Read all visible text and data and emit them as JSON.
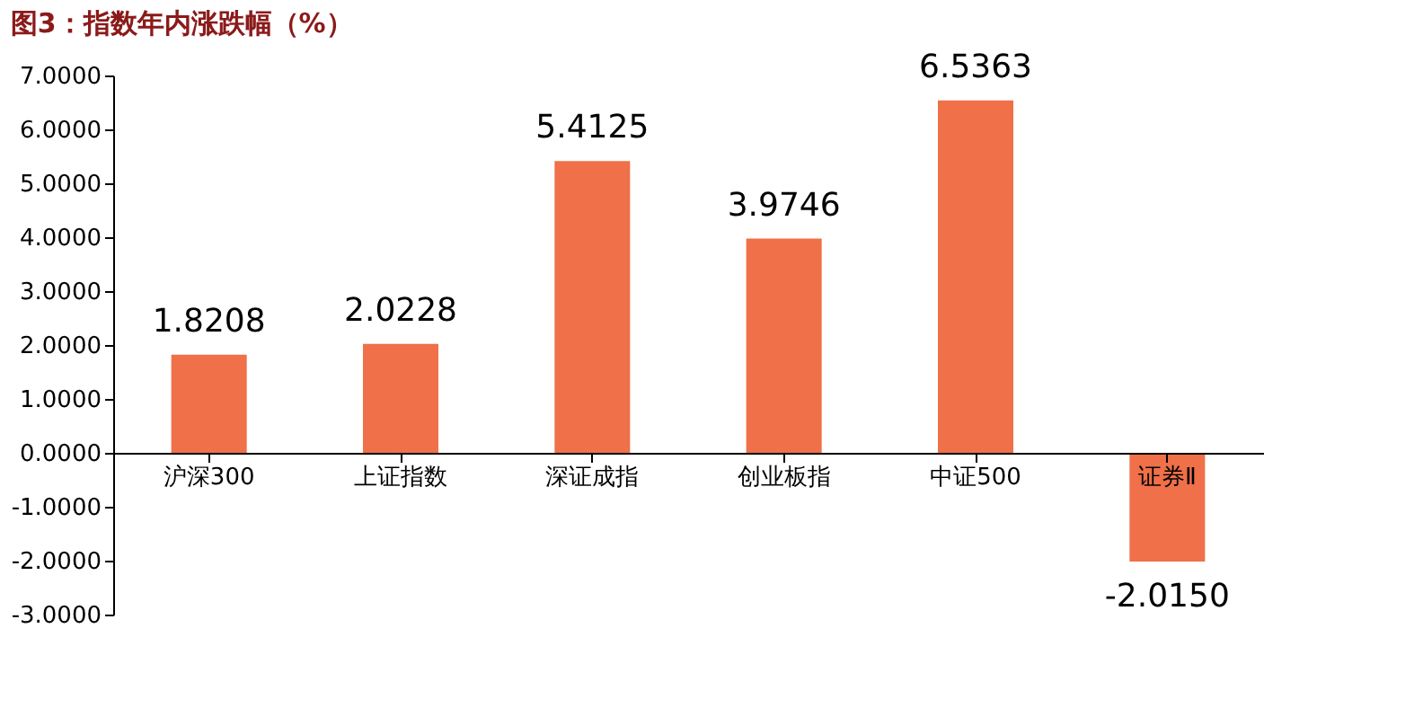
{
  "chart_data": {
    "type": "bar",
    "title": "图3：指数年内涨跌幅（%）",
    "categories": [
      "沪深300",
      "上证指数",
      "深证成指",
      "创业板指",
      "中证500",
      "证券Ⅱ"
    ],
    "values": [
      1.8208,
      2.0228,
      5.4125,
      3.9746,
      6.5363,
      -2.015
    ],
    "color": "#ef7049",
    "ylim": [
      -3,
      7
    ],
    "yticks": [
      {
        "value": -3,
        "label": "-3.0000"
      },
      {
        "value": -2,
        "label": "-2.0000"
      },
      {
        "value": -1,
        "label": "-1.0000"
      },
      {
        "value": 0,
        "label": "0.0000"
      },
      {
        "value": 1,
        "label": "1.0000"
      },
      {
        "value": 2,
        "label": "2.0000"
      },
      {
        "value": 3,
        "label": "3.0000"
      },
      {
        "value": 4,
        "label": "4.0000"
      },
      {
        "value": 5,
        "label": "5.0000"
      },
      {
        "value": 6,
        "label": "6.0000"
      },
      {
        "value": 7,
        "label": "7.0000"
      }
    ],
    "value_labels": [
      "1.8208",
      "2.0228",
      "5.4125",
      "3.9746",
      "6.5363",
      "-2.0150"
    ],
    "grid": false
  }
}
